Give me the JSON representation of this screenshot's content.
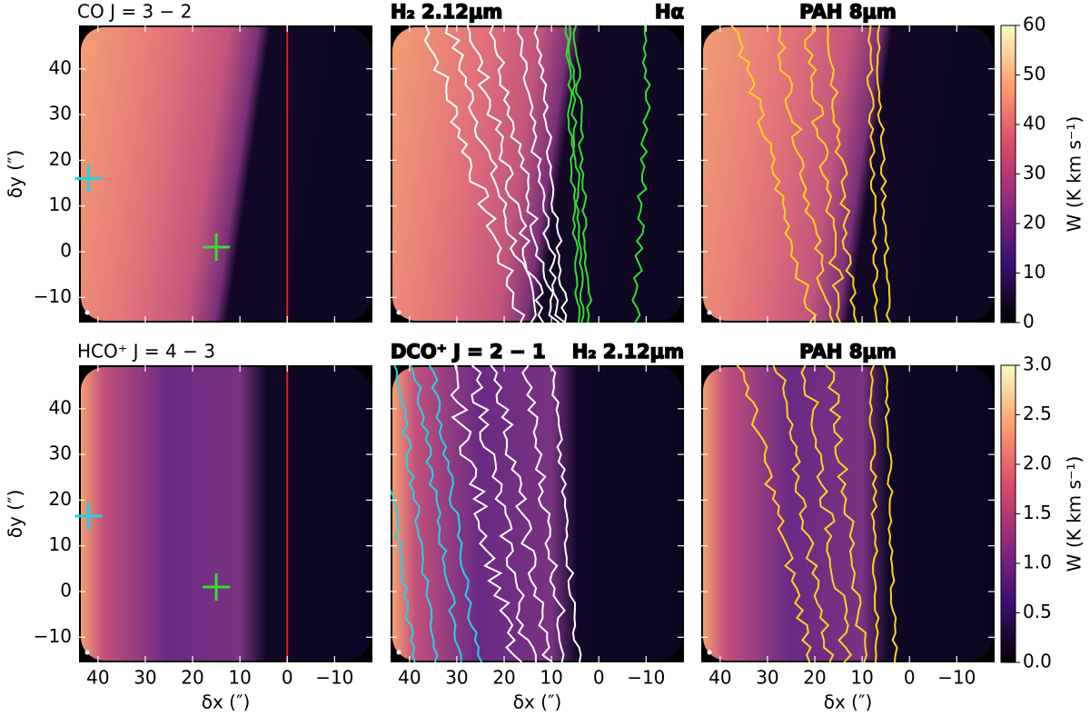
{
  "chart_data": [
    {
      "type": "image",
      "title": "CO J = 3 − 2",
      "title_color": "#000000",
      "ylabel": "δy (″)",
      "xlim": [
        44,
        -18
      ],
      "ylim": [
        -15.5,
        49.5
      ],
      "xticks": [
        40,
        30,
        20,
        10,
        0,
        {
          "value": -10,
          "label": "−10"
        }
      ],
      "yticks": [
        {
          "value": -10,
          "label": "−10"
        },
        0,
        10,
        20,
        30,
        40
      ],
      "vline": 0,
      "vline_color": "#e02020",
      "series": [
        {
          "color": "#22d3e6",
          "x": [
            42
          ],
          "values": [
            16
          ]
        },
        {
          "color": "#33dd33",
          "x": [
            15
          ],
          "values": [
            1
          ]
        }
      ]
    },
    {
      "type": "image",
      "title": "H₂ 2.12μm",
      "title_color": "#ffffff",
      "title2": "Hα",
      "title2_color": "#33dd33",
      "xlim": [
        44,
        -18
      ],
      "ylim": [
        -15.5,
        49.5
      ],
      "xticks": [
        40,
        30,
        20,
        10,
        0,
        {
          "value": -10,
          "label": "−10"
        }
      ],
      "yticks": [
        {
          "value": -10,
          "label": "−10"
        },
        0,
        10,
        20,
        30,
        40
      ],
      "contour_colors": [
        "#ffffff",
        "#33dd33"
      ]
    },
    {
      "type": "image",
      "title": "PAH 8μm",
      "title_color": "#ffd21f",
      "xlim": [
        44,
        -18
      ],
      "ylim": [
        -15.5,
        49.5
      ],
      "xticks": [
        40,
        30,
        20,
        10,
        0,
        {
          "value": -10,
          "label": "−10"
        }
      ],
      "yticks": [
        {
          "value": -10,
          "label": "−10"
        },
        0,
        10,
        20,
        30,
        40
      ],
      "contour_colors": [
        "#ffd21f"
      ],
      "colorbar": {
        "lim": [
          0,
          60
        ],
        "ticks": [
          0,
          10,
          20,
          30,
          40,
          50,
          60
        ],
        "label": "W (K km s⁻¹)",
        "colors": [
          "#000004",
          "#3b0f70",
          "#8c2981",
          "#de4968",
          "#fe9f6d",
          "#fcfdbf"
        ]
      }
    },
    {
      "type": "image",
      "title": "HCO⁺ J = 4 − 3",
      "title_color": "#000000",
      "ylabel": "δy (″)",
      "xlabel": "δx (″)",
      "xlim": [
        44,
        -18
      ],
      "ylim": [
        -15.5,
        49.5
      ],
      "xticks": [
        40,
        30,
        20,
        10,
        0,
        {
          "value": -10,
          "label": "−10"
        }
      ],
      "yticks": [
        {
          "value": -10,
          "label": "−10"
        },
        0,
        10,
        20,
        30,
        40
      ],
      "vline": 0,
      "vline_color": "#e02020",
      "series": [
        {
          "color": "#22d3e6",
          "x": [
            42
          ],
          "values": [
            16.5
          ]
        },
        {
          "color": "#33dd33",
          "x": [
            15
          ],
          "values": [
            1
          ]
        }
      ]
    },
    {
      "type": "image",
      "title": "DCO⁺ J = 2 − 1",
      "title_color": "#22d3e6",
      "title2": "H₂ 2.12μm",
      "title2_color": "#ffffff",
      "xlabel": "δx (″)",
      "xlim": [
        44,
        -18
      ],
      "ylim": [
        -15.5,
        49.5
      ],
      "xticks": [
        40,
        30,
        20,
        10,
        0,
        {
          "value": -10,
          "label": "−10"
        }
      ],
      "yticks": [
        {
          "value": -10,
          "label": "−10"
        },
        0,
        10,
        20,
        30,
        40
      ],
      "contour_colors": [
        "#ffffff",
        "#22d3e6"
      ]
    },
    {
      "type": "image",
      "title": "PAH 8μm",
      "title_color": "#ffd21f",
      "xlabel": "δx (″)",
      "xlim": [
        44,
        -18
      ],
      "ylim": [
        -15.5,
        49.5
      ],
      "xticks": [
        40,
        30,
        20,
        10,
        0,
        {
          "value": -10,
          "label": "−10"
        }
      ],
      "yticks": [
        {
          "value": -10,
          "label": "−10"
        },
        0,
        10,
        20,
        30,
        40
      ],
      "contour_colors": [
        "#ffd21f"
      ],
      "colorbar": {
        "lim": [
          0,
          3
        ],
        "ticks": [
          {
            "value": 0,
            "label": "0.0"
          },
          0.5,
          {
            "value": 1,
            "label": "1.0"
          },
          1.5,
          {
            "value": 2,
            "label": "2.0"
          },
          2.5,
          {
            "value": 3,
            "label": "3.0"
          }
        ],
        "label": "W (K km s⁻¹)",
        "colors": [
          "#000004",
          "#3b0f70",
          "#8c2981",
          "#de4968",
          "#fe9f6d",
          "#fcfdbf"
        ]
      }
    }
  ]
}
